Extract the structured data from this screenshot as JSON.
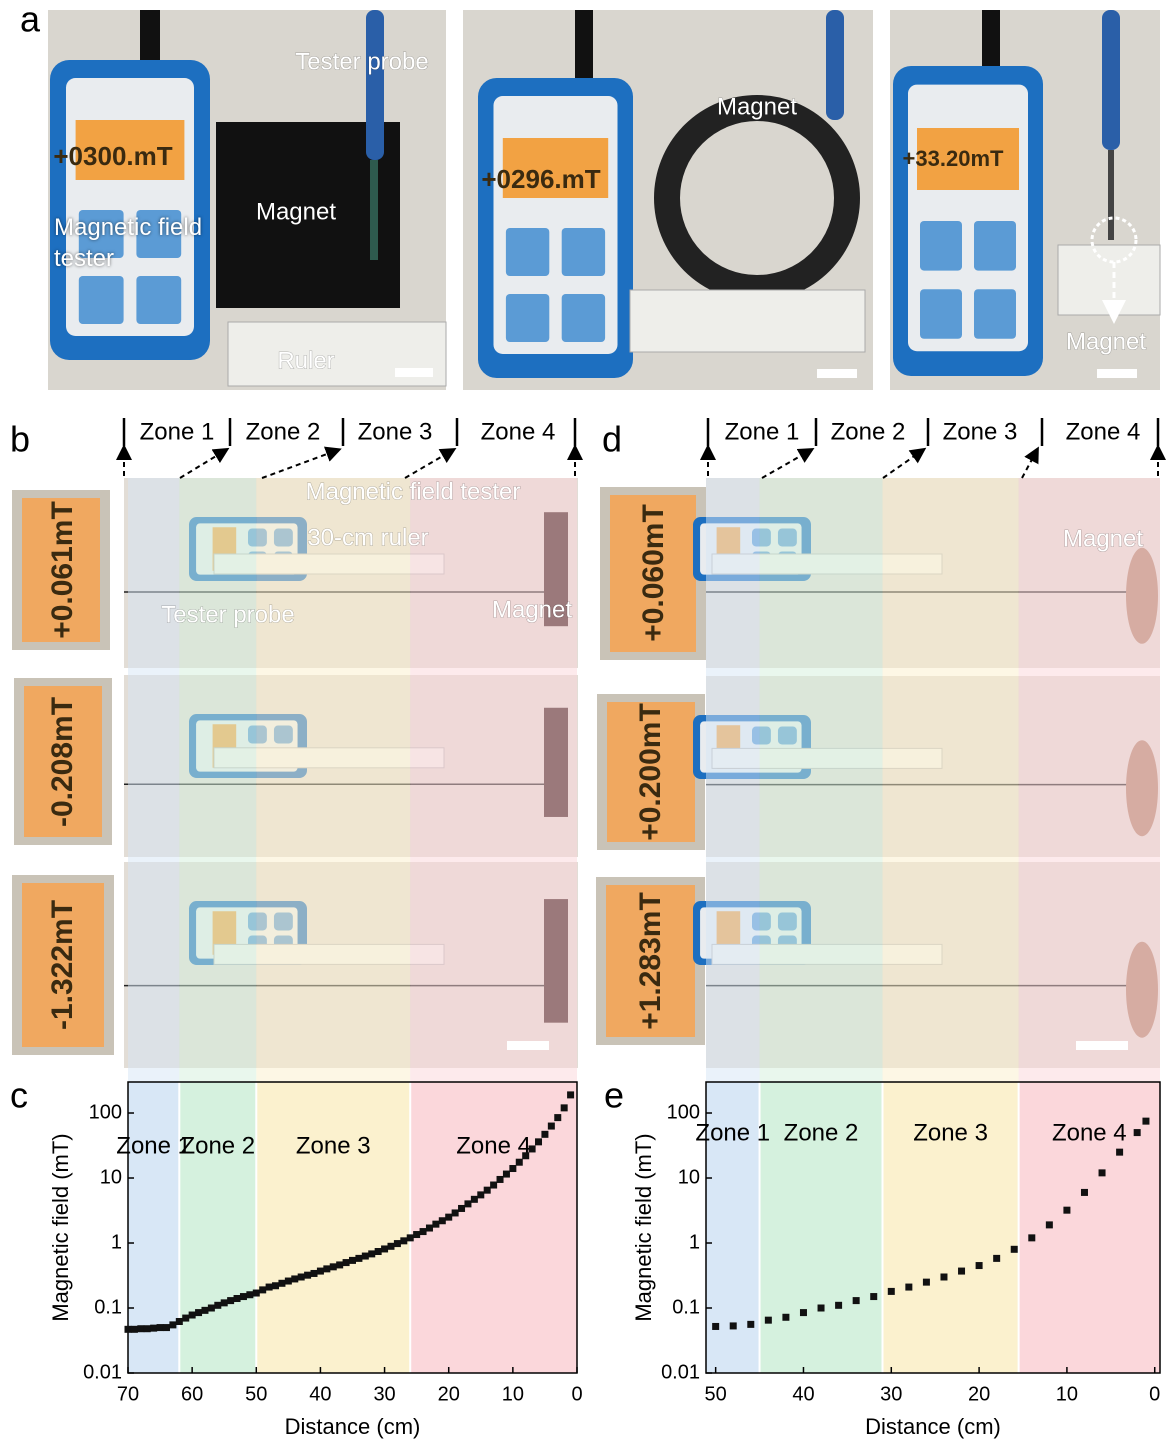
{
  "panel_labels": [
    "a",
    "b",
    "c",
    "d",
    "e"
  ],
  "panel_a": {
    "labels": [
      "Tester probe",
      "Magnetic field tester",
      "Magnet",
      "Ruler",
      "Magnet",
      "Magnet"
    ],
    "readings": [
      "+0300.mT",
      "+0296.mT",
      "+33.20mT"
    ]
  },
  "panel_b": {
    "zones": [
      "Zone 1",
      "Zone 2",
      "Zone 3",
      "Zone 4"
    ],
    "labels": [
      "Magnetic field tester",
      "30-cm ruler",
      "Tester probe",
      "Magnet"
    ],
    "readings": [
      "+0.061mT",
      "-0.208mT",
      "-1.322mT"
    ]
  },
  "panel_d": {
    "zones": [
      "Zone 1",
      "Zone 2",
      "Zone 3",
      "Zone 4"
    ],
    "labels": [
      "Magnet"
    ],
    "readings": [
      "+0.060mT",
      "+0.200mT",
      "+1.283mT"
    ]
  },
  "chart_data": [
    {
      "type": "scatter",
      "xlabel": "Distance (cm)",
      "ylabel": "Magnetic field (mT)",
      "xlim": [
        70,
        0
      ],
      "ylim": [
        0.01,
        300
      ],
      "log_y": true,
      "xticks": [
        70,
        60,
        50,
        40,
        30,
        20,
        10,
        0
      ],
      "yticks": [
        0.01,
        0.1,
        1,
        10,
        100
      ],
      "color": "#111111",
      "zones": [
        {
          "name": "Zone 1",
          "from": 70,
          "to": 62,
          "color": "#d6e6f5"
        },
        {
          "name": "Zone 2",
          "from": 62,
          "to": 50,
          "color": "#d3f0dc"
        },
        {
          "name": "Zone 3",
          "from": 50,
          "to": 26,
          "color": "#fbf0cb"
        },
        {
          "name": "Zone 4",
          "from": 26,
          "to": 0,
          "color": "#fbd5d9"
        }
      ],
      "x": [
        70,
        69,
        68,
        67,
        66,
        65,
        64,
        63,
        62,
        61,
        60,
        59,
        58,
        57,
        56,
        55,
        54,
        53,
        52,
        51,
        50,
        49,
        48,
        47,
        46,
        45,
        44,
        43,
        42,
        41,
        40,
        39,
        38,
        37,
        36,
        35,
        34,
        33,
        32,
        31,
        30,
        29,
        28,
        27,
        26,
        25,
        24,
        23,
        22,
        21,
        20,
        19,
        18,
        17,
        16,
        15,
        14,
        13,
        12,
        11,
        10,
        9,
        8,
        7,
        6,
        5,
        4,
        3,
        2,
        1
      ],
      "values": [
        0.047,
        0.047,
        0.048,
        0.048,
        0.049,
        0.05,
        0.05,
        0.055,
        0.062,
        0.07,
        0.078,
        0.085,
        0.092,
        0.1,
        0.11,
        0.12,
        0.13,
        0.14,
        0.15,
        0.16,
        0.17,
        0.19,
        0.21,
        0.22,
        0.24,
        0.26,
        0.28,
        0.3,
        0.32,
        0.34,
        0.37,
        0.4,
        0.43,
        0.46,
        0.5,
        0.54,
        0.58,
        0.63,
        0.68,
        0.74,
        0.81,
        0.89,
        0.98,
        1.08,
        1.2,
        1.35,
        1.5,
        1.7,
        1.95,
        2.2,
        2.5,
        2.9,
        3.4,
        4,
        4.7,
        5.5,
        6.5,
        7.8,
        9.5,
        11.5,
        14,
        17.5,
        22,
        28,
        36,
        47,
        63,
        85,
        120,
        190
      ]
    },
    {
      "type": "scatter",
      "xlabel": "Distance (cm)",
      "ylabel": "Magnetic field (mT)",
      "xlim": [
        51.1,
        -0.6
      ],
      "ylim": [
        0.01,
        300
      ],
      "log_y": true,
      "xticks": [
        50,
        40,
        30,
        20,
        10,
        0
      ],
      "yticks": [
        0.01,
        0.1,
        1,
        10,
        100
      ],
      "color": "#111111",
      "zones": [
        {
          "name": "Zone 1",
          "from": 51.1,
          "to": 45,
          "color": "#d6e6f5"
        },
        {
          "name": "Zone 2",
          "from": 45,
          "to": 31,
          "color": "#d3f0dc"
        },
        {
          "name": "Zone 3",
          "from": 31,
          "to": 15.5,
          "color": "#fbf0cb"
        },
        {
          "name": "Zone 4",
          "from": 15.5,
          "to": -0.6,
          "color": "#fbd5d9"
        }
      ],
      "x": [
        50,
        48,
        46,
        44,
        42,
        40,
        38,
        36,
        34,
        32,
        30,
        28,
        26,
        24,
        22,
        20,
        18,
        16,
        14,
        12,
        10,
        8,
        6,
        4,
        2,
        1
      ],
      "values": [
        0.052,
        0.053,
        0.056,
        0.065,
        0.072,
        0.085,
        0.1,
        0.11,
        0.13,
        0.15,
        0.18,
        0.21,
        0.25,
        0.3,
        0.37,
        0.45,
        0.58,
        0.8,
        1.2,
        1.9,
        3.2,
        6,
        12,
        25,
        50,
        75
      ]
    }
  ]
}
